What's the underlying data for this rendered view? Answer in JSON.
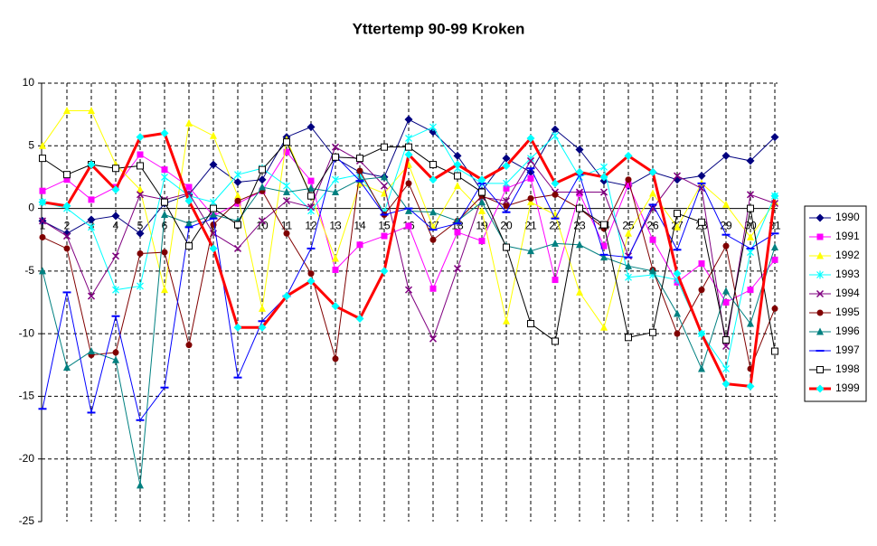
{
  "chart_data": {
    "type": "line",
    "title": "Yttertemp 90-99 Kroken",
    "categories": [
      "1",
      "2",
      "3",
      "4",
      "5",
      "6",
      "7",
      "8",
      "9",
      "10",
      "11",
      "12",
      "13",
      "14",
      "15",
      "16",
      "17",
      "18",
      "19",
      "20",
      "21",
      "22",
      "23",
      "24",
      "25",
      "26",
      "27",
      "28",
      "29",
      "30",
      "31"
    ],
    "ylim": [
      -25,
      10
    ],
    "yticks": [
      -25,
      -20,
      -15,
      -10,
      -5,
      0,
      5,
      10
    ],
    "grid": true,
    "legend": "right",
    "series": [
      {
        "name": "1990",
        "color": "#000080",
        "marker": "diamond",
        "values": [
          -1.0,
          -2.0,
          -0.9,
          -0.6,
          -2.0,
          0.4,
          1.1,
          3.5,
          2.1,
          2.3,
          5.7,
          6.5,
          4.0,
          2.9,
          2.5,
          7.1,
          6.1,
          4.2,
          1.4,
          4.0,
          2.9,
          6.3,
          4.7,
          2.2,
          1.8,
          2.9,
          2.3,
          2.6,
          4.2,
          3.8,
          5.7
        ]
      },
      {
        "name": "1991",
        "color": "#ff00ff",
        "marker": "square",
        "values": [
          1.4,
          2.3,
          0.7,
          1.7,
          4.3,
          3.1,
          1.7,
          -0.6,
          0.4,
          1.4,
          4.5,
          2.2,
          -4.9,
          -2.9,
          -2.2,
          -1.4,
          -6.4,
          -1.9,
          -2.6,
          1.6,
          2.4,
          -5.7,
          1.2,
          -3.0,
          1.9,
          -2.5,
          -5.9,
          -4.4,
          -7.5,
          -6.5,
          -4.1
        ]
      },
      {
        "name": "1992",
        "color": "#ffff00",
        "marker": "triangle",
        "values": [
          5.0,
          7.8,
          7.8,
          3.5,
          1.5,
          -6.5,
          6.8,
          5.8,
          1.0,
          -8.0,
          5.5,
          1.0,
          -4.0,
          2.0,
          1.2,
          3.5,
          -1.5,
          1.8,
          -0.2,
          -9.0,
          0.5,
          -0.5,
          -6.7,
          -9.5,
          -2.0,
          1.2,
          -1.5,
          2.0,
          0.3,
          -2.3,
          0.5
        ]
      },
      {
        "name": "1993",
        "color": "#00ffff",
        "marker": "star",
        "values": [
          0.5,
          0.0,
          -1.5,
          -6.5,
          -6.2,
          2.5,
          1.0,
          0.5,
          2.7,
          3.2,
          1.8,
          -0.2,
          2.3,
          2.7,
          -0.3,
          5.6,
          6.5,
          3.2,
          2.0,
          2.0,
          4.0,
          5.8,
          2.5,
          3.3,
          -5.5,
          -5.3,
          -5.7,
          -10.0,
          -12.8,
          -3.5,
          1.0
        ]
      },
      {
        "name": "1994",
        "color": "#800080",
        "marker": "x",
        "values": [
          -1.0,
          -2.2,
          -7.0,
          -3.8,
          1.1,
          0.7,
          1.2,
          -2.0,
          -3.2,
          -1.0,
          0.6,
          0.1,
          4.9,
          3.8,
          1.8,
          -6.5,
          -10.4,
          -4.8,
          0.9,
          0.6,
          3.8,
          1.3,
          1.3,
          1.3,
          -3.8,
          0.0,
          2.6,
          1.6,
          -11.0,
          1.1,
          0.4
        ]
      },
      {
        "name": "1995",
        "color": "#800000",
        "marker": "circle",
        "values": [
          -2.3,
          -3.2,
          -11.7,
          -11.5,
          -3.6,
          -3.5,
          -10.9,
          -1.3,
          0.6,
          1.4,
          -2.0,
          -5.2,
          -12.0,
          3.0,
          -0.5,
          2.0,
          -2.5,
          -1.0,
          1.0,
          0.2,
          0.8,
          1.1,
          0.0,
          -1.6,
          2.3,
          -4.9,
          -10.0,
          -6.5,
          -3.0,
          -12.8,
          -8.0
        ]
      },
      {
        "name": "1996",
        "color": "#008080",
        "marker": "triangle",
        "values": [
          -5.0,
          -12.7,
          -11.4,
          -12.1,
          -22.1,
          -0.5,
          -1.2,
          -0.5,
          -1.0,
          1.7,
          1.3,
          1.6,
          1.3,
          2.3,
          2.5,
          -0.2,
          -0.3,
          -1.0,
          0.5,
          -3.0,
          -3.4,
          -2.8,
          -2.9,
          -3.9,
          -4.6,
          -5.0,
          -8.4,
          -12.8,
          -6.6,
          -9.2,
          -3.1
        ]
      },
      {
        "name": "1997",
        "color": "#0000ff",
        "marker": "dash",
        "values": [
          -16.0,
          -6.7,
          -16.3,
          -8.6,
          -16.9,
          -14.3,
          -1.5,
          -0.8,
          -13.5,
          -9.0,
          -7.0,
          -3.2,
          4.2,
          2.2,
          -0.5,
          0.0,
          -1.7,
          -1.2,
          2.0,
          -0.3,
          3.2,
          -0.8,
          2.7,
          -3.7,
          -3.9,
          0.3,
          -3.3,
          2.0,
          -2.1,
          -3.2,
          -2.0
        ]
      },
      {
        "name": "1998",
        "color": "#000000",
        "marker": "square-open",
        "values": [
          4.0,
          2.7,
          3.5,
          3.2,
          3.4,
          0.5,
          -3.0,
          0.0,
          -1.3,
          3.1,
          5.3,
          1.0,
          4.1,
          4.0,
          4.9,
          4.9,
          3.5,
          2.6,
          1.3,
          -3.1,
          -9.2,
          -10.6,
          0.0,
          -1.3,
          -10.3,
          -9.9,
          -0.4,
          -1.1,
          -10.5,
          0.0,
          -11.4
        ]
      },
      {
        "name": "1999",
        "color": "#ff0000",
        "marker_color": "#00ffff",
        "width": 3,
        "marker": "diamond",
        "values": [
          0.5,
          0.2,
          3.5,
          1.5,
          5.7,
          6.0,
          0.6,
          -3.2,
          -9.5,
          -9.5,
          -7.0,
          -5.8,
          -7.8,
          -8.8,
          -5.0,
          4.3,
          2.3,
          3.5,
          2.3,
          3.4,
          5.6,
          2.0,
          2.9,
          2.5,
          4.2,
          2.9,
          -5.2,
          -10.0,
          -14.0,
          -14.2,
          1.0
        ]
      }
    ]
  }
}
